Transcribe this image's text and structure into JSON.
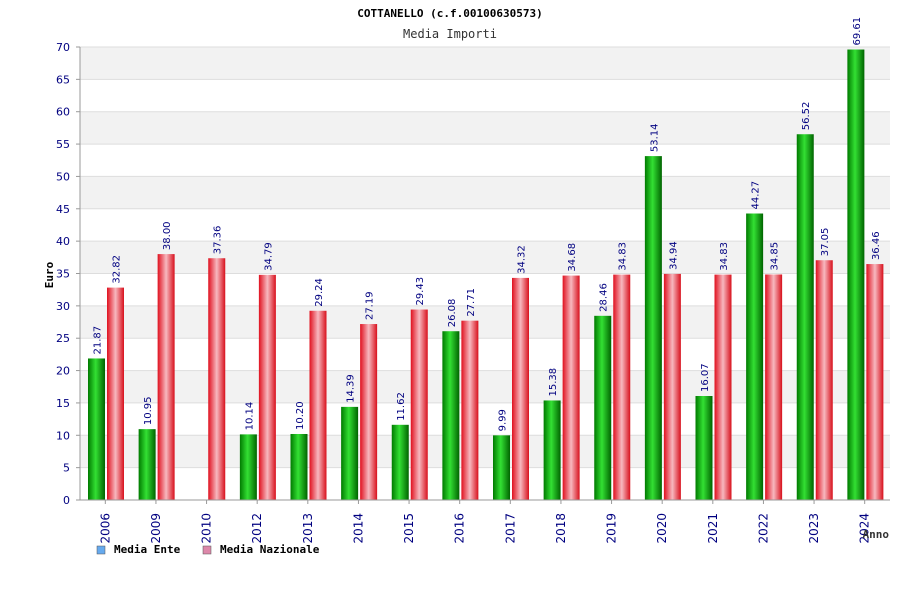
{
  "chart_data": {
    "type": "bar",
    "title": "COTTANELLO (c.f.00100630573)",
    "subtitle": "Media Importi",
    "ylabel": "Euro",
    "xlabel": "Anno",
    "ylim": [
      0,
      70
    ],
    "ytick_step": 5,
    "grid": true,
    "legend_position": "bottom-left",
    "categories": [
      "2006",
      "2009",
      "2010",
      "2012",
      "2013",
      "2014",
      "2015",
      "2016",
      "2017",
      "2018",
      "2019",
      "2020",
      "2021",
      "2022",
      "2023",
      "2024"
    ],
    "series": [
      {
        "name": "Media Ente",
        "color": "#00c000",
        "legend_color": "#66aaee",
        "values": [
          21.87,
          10.95,
          null,
          10.14,
          10.2,
          14.39,
          11.62,
          26.08,
          9.99,
          15.38,
          28.46,
          53.14,
          16.07,
          44.27,
          56.52,
          69.61
        ],
        "labels": [
          "21.87",
          "10.95",
          "",
          "10.14",
          "10.20",
          "14.39",
          "11.62",
          "26.08",
          "9.99",
          "15.38",
          "28.46",
          "53.14",
          "16.07",
          "44.27",
          "56.52",
          "69.61"
        ]
      },
      {
        "name": "Media Nazionale",
        "color": "#e8202e",
        "legend_color": "#dd88aa",
        "values": [
          32.82,
          38.0,
          37.36,
          34.79,
          29.24,
          27.19,
          29.43,
          27.71,
          34.32,
          34.68,
          34.83,
          34.94,
          34.83,
          34.85,
          37.05,
          36.46
        ],
        "labels": [
          "32.82",
          "38.00",
          "37.36",
          "34.79",
          "29.24",
          "27.19",
          "29.43",
          "27.71",
          "34.32",
          "34.68",
          "34.83",
          "34.94",
          "34.83",
          "34.85",
          "37.05",
          "36.46"
        ]
      }
    ]
  },
  "colors": {
    "axis_text": "#000080",
    "label_text": "#000080",
    "band": "#f2f2f2",
    "grid": "#dddddd"
  }
}
